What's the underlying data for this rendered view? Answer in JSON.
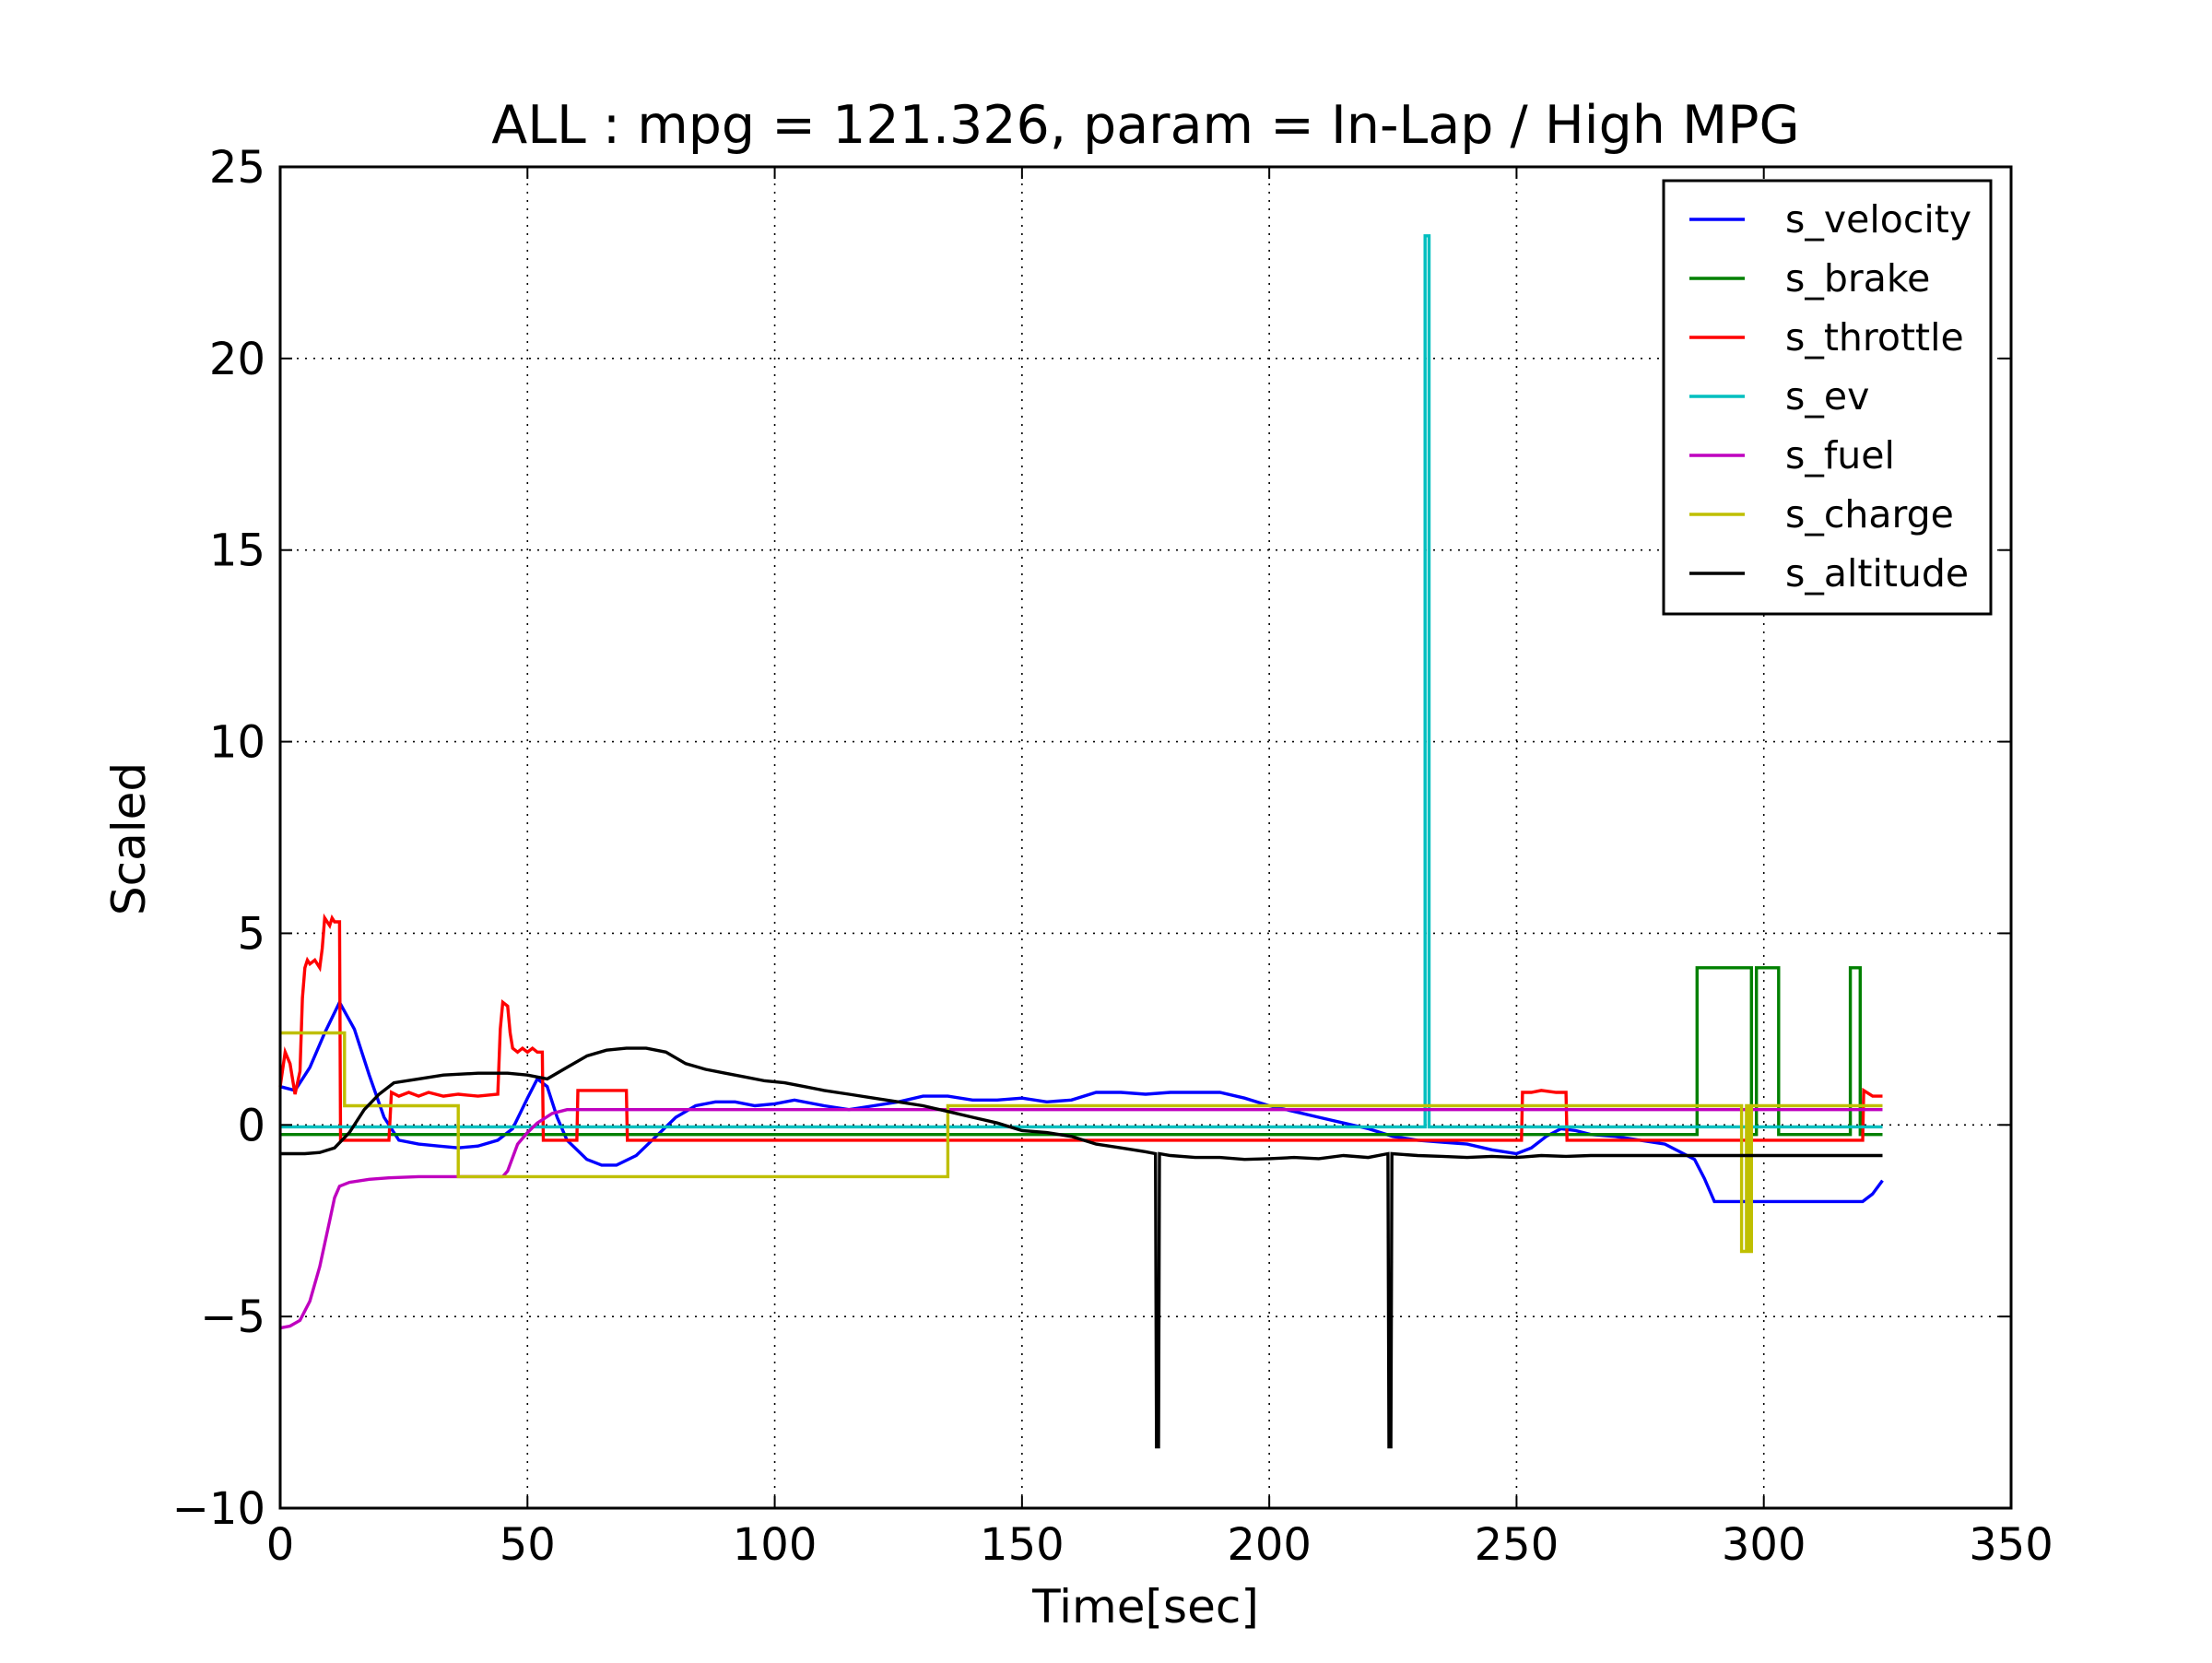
{
  "chart_data": {
    "type": "line",
    "title": "ALL : mpg = 121.326, param = In-Lap / High MPG",
    "xlabel": "Time[sec]",
    "ylabel": "Scaled",
    "xlim": [
      0,
      350
    ],
    "ylim": [
      -10,
      25
    ],
    "xticks": [
      0,
      50,
      100,
      150,
      200,
      250,
      300,
      350
    ],
    "yticks": [
      -10,
      -5,
      0,
      5,
      10,
      15,
      20,
      25
    ],
    "xtick_labels": [
      "0",
      "50",
      "100",
      "150",
      "200",
      "250",
      "300",
      "350"
    ],
    "ytick_labels": [
      "−10",
      "−5",
      "0",
      "5",
      "10",
      "15",
      "20",
      "25"
    ],
    "grid": true,
    "legend_position": "top-right",
    "series": [
      {
        "name": "s_velocity",
        "color": "#0000ff",
        "points": [
          [
            0,
            1.0
          ],
          [
            3,
            0.9
          ],
          [
            6,
            1.5
          ],
          [
            9,
            2.4
          ],
          [
            12,
            3.2
          ],
          [
            15,
            2.5
          ],
          [
            18,
            1.3
          ],
          [
            21,
            0.2
          ],
          [
            24,
            -0.4
          ],
          [
            28,
            -0.5
          ],
          [
            32,
            -0.55
          ],
          [
            36,
            -0.6
          ],
          [
            40,
            -0.55
          ],
          [
            44,
            -0.4
          ],
          [
            47,
            -0.1
          ],
          [
            50,
            0.7
          ],
          [
            52,
            1.2
          ],
          [
            54,
            1.0
          ],
          [
            56,
            0.2
          ],
          [
            58,
            -0.4
          ],
          [
            62,
            -0.9
          ],
          [
            65,
            -1.05
          ],
          [
            68,
            -1.05
          ],
          [
            72,
            -0.8
          ],
          [
            76,
            -0.3
          ],
          [
            80,
            0.2
          ],
          [
            84,
            0.5
          ],
          [
            88,
            0.6
          ],
          [
            92,
            0.6
          ],
          [
            96,
            0.5
          ],
          [
            100,
            0.55
          ],
          [
            104,
            0.65
          ],
          [
            110,
            0.5
          ],
          [
            115,
            0.4
          ],
          [
            120,
            0.5
          ],
          [
            125,
            0.6
          ],
          [
            130,
            0.75
          ],
          [
            135,
            0.75
          ],
          [
            140,
            0.65
          ],
          [
            145,
            0.65
          ],
          [
            150,
            0.7
          ],
          [
            155,
            0.6
          ],
          [
            160,
            0.65
          ],
          [
            165,
            0.85
          ],
          [
            170,
            0.85
          ],
          [
            175,
            0.8
          ],
          [
            180,
            0.85
          ],
          [
            185,
            0.85
          ],
          [
            190,
            0.85
          ],
          [
            195,
            0.7
          ],
          [
            200,
            0.5
          ],
          [
            205,
            0.35
          ],
          [
            210,
            0.2
          ],
          [
            215,
            0.05
          ],
          [
            220,
            -0.1
          ],
          [
            225,
            -0.3
          ],
          [
            230,
            -0.4
          ],
          [
            235,
            -0.45
          ],
          [
            240,
            -0.5
          ],
          [
            245,
            -0.65
          ],
          [
            250,
            -0.75
          ],
          [
            253,
            -0.6
          ],
          [
            256,
            -0.3
          ],
          [
            259,
            -0.1
          ],
          [
            262,
            -0.15
          ],
          [
            265,
            -0.25
          ],
          [
            270,
            -0.3
          ],
          [
            275,
            -0.4
          ],
          [
            280,
            -0.5
          ],
          [
            283,
            -0.7
          ],
          [
            286,
            -0.9
          ],
          [
            288,
            -1.4
          ],
          [
            290,
            -2.0
          ],
          [
            295,
            -2.0
          ],
          [
            300,
            -2.0
          ],
          [
            305,
            -2.0
          ],
          [
            310,
            -2.0
          ],
          [
            315,
            -2.0
          ],
          [
            320,
            -2.0
          ],
          [
            322,
            -1.8
          ],
          [
            324,
            -1.45
          ]
        ]
      },
      {
        "name": "s_brake",
        "color": "#008000",
        "points": [
          [
            0,
            -0.25
          ],
          [
            286.5,
            -0.25
          ],
          [
            286.5,
            4.1
          ],
          [
            297.5,
            4.1
          ],
          [
            297.5,
            -0.25
          ],
          [
            298.5,
            -0.25
          ],
          [
            298.5,
            4.1
          ],
          [
            303,
            4.1
          ],
          [
            303,
            -0.25
          ],
          [
            317.5,
            -0.25
          ],
          [
            317.5,
            4.1
          ],
          [
            319.5,
            4.1
          ],
          [
            319.5,
            -0.25
          ],
          [
            324,
            -0.25
          ]
        ]
      },
      {
        "name": "s_throttle",
        "color": "#ff0000",
        "points": [
          [
            0,
            1.0
          ],
          [
            1,
            1.9
          ],
          [
            2,
            1.6
          ],
          [
            3,
            0.8
          ],
          [
            4,
            1.4
          ],
          [
            4.5,
            3.3
          ],
          [
            5,
            4.1
          ],
          [
            5.5,
            4.3
          ],
          [
            6,
            4.2
          ],
          [
            7,
            4.3
          ],
          [
            8,
            4.1
          ],
          [
            8.5,
            4.6
          ],
          [
            9,
            5.4
          ],
          [
            10,
            5.2
          ],
          [
            10.5,
            5.4
          ],
          [
            11,
            5.3
          ],
          [
            12,
            5.3
          ],
          [
            12.2,
            -0.4
          ],
          [
            22,
            -0.4
          ],
          [
            22.5,
            0.85
          ],
          [
            24,
            0.75
          ],
          [
            26,
            0.85
          ],
          [
            28,
            0.75
          ],
          [
            30,
            0.85
          ],
          [
            33,
            0.75
          ],
          [
            36,
            0.8
          ],
          [
            40,
            0.75
          ],
          [
            44,
            0.8
          ],
          [
            44.5,
            2.5
          ],
          [
            45,
            3.2
          ],
          [
            46,
            3.1
          ],
          [
            46.5,
            2.4
          ],
          [
            47,
            2.0
          ],
          [
            48,
            1.9
          ],
          [
            49,
            2.0
          ],
          [
            50,
            1.9
          ],
          [
            51,
            2.0
          ],
          [
            52,
            1.9
          ],
          [
            53,
            1.9
          ],
          [
            53.2,
            -0.4
          ],
          [
            60,
            -0.4
          ],
          [
            60.2,
            0.9
          ],
          [
            70,
            0.9
          ],
          [
            70.2,
            -0.4
          ],
          [
            251,
            -0.4
          ],
          [
            251.2,
            0.85
          ],
          [
            253,
            0.85
          ],
          [
            255,
            0.9
          ],
          [
            258,
            0.85
          ],
          [
            260,
            0.85
          ],
          [
            260.2,
            -0.4
          ],
          [
            320,
            -0.4
          ],
          [
            320.2,
            0.9
          ],
          [
            322,
            0.75
          ],
          [
            324,
            0.75
          ]
        ]
      },
      {
        "name": "s_ev",
        "color": "#00bfbf",
        "points": [
          [
            0,
            -0.05
          ],
          [
            231.5,
            -0.05
          ],
          [
            231.5,
            23.2
          ],
          [
            232.3,
            23.2
          ],
          [
            232.3,
            -0.05
          ],
          [
            324,
            -0.05
          ]
        ]
      },
      {
        "name": "s_fuel",
        "color": "#bf00bf",
        "points": [
          [
            0,
            -5.3
          ],
          [
            2,
            -5.25
          ],
          [
            4,
            -5.1
          ],
          [
            6,
            -4.6
          ],
          [
            8,
            -3.7
          ],
          [
            10,
            -2.5
          ],
          [
            11,
            -1.9
          ],
          [
            12,
            -1.6
          ],
          [
            14,
            -1.5
          ],
          [
            18,
            -1.42
          ],
          [
            22,
            -1.38
          ],
          [
            28,
            -1.35
          ],
          [
            35,
            -1.35
          ],
          [
            45,
            -1.35
          ],
          [
            46,
            -1.2
          ],
          [
            48,
            -0.5
          ],
          [
            50,
            -0.2
          ],
          [
            52,
            0.05
          ],
          [
            55,
            0.3
          ],
          [
            58,
            0.4
          ],
          [
            324,
            0.4
          ]
        ]
      },
      {
        "name": "s_charge",
        "color": "#bfbf00",
        "points": [
          [
            0,
            2.4
          ],
          [
            13,
            2.4
          ],
          [
            13,
            0.5
          ],
          [
            36,
            0.5
          ],
          [
            36,
            -1.35
          ],
          [
            135,
            -1.35
          ],
          [
            135,
            0.5
          ],
          [
            295.5,
            0.5
          ],
          [
            295.5,
            -3.3
          ],
          [
            296.5,
            -3.3
          ],
          [
            296.5,
            0.5
          ],
          [
            297,
            0.5
          ],
          [
            297,
            -3.3
          ],
          [
            297.5,
            -3.3
          ],
          [
            297.5,
            0.5
          ],
          [
            324,
            0.5
          ]
        ]
      },
      {
        "name": "s_altitude",
        "color": "#000000",
        "points": [
          [
            0,
            -0.75
          ],
          [
            5,
            -0.75
          ],
          [
            8,
            -0.72
          ],
          [
            11,
            -0.6
          ],
          [
            14,
            -0.2
          ],
          [
            17,
            0.4
          ],
          [
            20,
            0.8
          ],
          [
            23,
            1.1
          ],
          [
            28,
            1.2
          ],
          [
            33,
            1.3
          ],
          [
            40,
            1.35
          ],
          [
            46,
            1.35
          ],
          [
            50,
            1.3
          ],
          [
            54,
            1.2
          ],
          [
            58,
            1.5
          ],
          [
            62,
            1.8
          ],
          [
            66,
            1.95
          ],
          [
            70,
            2.0
          ],
          [
            74,
            2.0
          ],
          [
            78,
            1.9
          ],
          [
            82,
            1.6
          ],
          [
            86,
            1.45
          ],
          [
            90,
            1.35
          ],
          [
            94,
            1.25
          ],
          [
            98,
            1.15
          ],
          [
            102,
            1.1
          ],
          [
            106,
            1.0
          ],
          [
            110,
            0.9
          ],
          [
            115,
            0.8
          ],
          [
            120,
            0.7
          ],
          [
            125,
            0.6
          ],
          [
            130,
            0.5
          ],
          [
            135,
            0.35
          ],
          [
            140,
            0.2
          ],
          [
            145,
            0.05
          ],
          [
            150,
            -0.15
          ],
          [
            155,
            -0.2
          ],
          [
            160,
            -0.3
          ],
          [
            165,
            -0.5
          ],
          [
            170,
            -0.6
          ],
          [
            175,
            -0.7
          ],
          [
            177,
            -0.75
          ],
          [
            177.2,
            -8.4
          ],
          [
            177.6,
            -8.4
          ],
          [
            177.8,
            -0.75
          ],
          [
            180,
            -0.8
          ],
          [
            185,
            -0.85
          ],
          [
            190,
            -0.85
          ],
          [
            195,
            -0.9
          ],
          [
            200,
            -0.88
          ],
          [
            205,
            -0.85
          ],
          [
            210,
            -0.88
          ],
          [
            215,
            -0.8
          ],
          [
            220,
            -0.85
          ],
          [
            224,
            -0.75
          ],
          [
            224.2,
            -8.4
          ],
          [
            224.6,
            -8.4
          ],
          [
            224.8,
            -0.75
          ],
          [
            230,
            -0.8
          ],
          [
            235,
            -0.82
          ],
          [
            240,
            -0.85
          ],
          [
            245,
            -0.82
          ],
          [
            250,
            -0.85
          ],
          [
            255,
            -0.8
          ],
          [
            260,
            -0.82
          ],
          [
            265,
            -0.8
          ],
          [
            270,
            -0.8
          ],
          [
            280,
            -0.8
          ],
          [
            290,
            -0.8
          ],
          [
            300,
            -0.8
          ],
          [
            310,
            -0.8
          ],
          [
            324,
            -0.8
          ]
        ]
      }
    ]
  }
}
